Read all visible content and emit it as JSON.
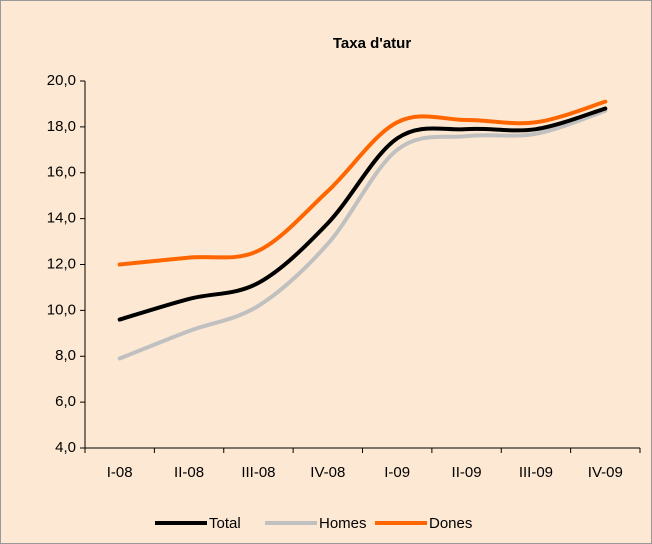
{
  "chart_data": {
    "type": "line",
    "title": "Taxa d'atur",
    "categories": [
      "I-08",
      "II-08",
      "III-08",
      "IV-08",
      "I-09",
      "II-09",
      "III-09",
      "IV-09"
    ],
    "series": [
      {
        "name": "Total",
        "color": "#000000",
        "values": [
          9.6,
          10.5,
          11.2,
          13.8,
          17.5,
          17.9,
          17.9,
          18.8
        ]
      },
      {
        "name": "Homes",
        "color": "#c0c0c0",
        "values": [
          7.9,
          9.1,
          10.2,
          12.9,
          17.0,
          17.6,
          17.7,
          18.7
        ]
      },
      {
        "name": "Dones",
        "color": "#ff6600",
        "values": [
          12.0,
          12.3,
          12.6,
          15.2,
          18.2,
          18.3,
          18.2,
          19.1
        ]
      }
    ],
    "ylim": [
      4,
      20
    ],
    "yticks": [
      {
        "value": 4,
        "label": "4,0"
      },
      {
        "value": 6,
        "label": "6,0"
      },
      {
        "value": 8,
        "label": "8,0"
      },
      {
        "value": 10,
        "label": "10,0"
      },
      {
        "value": 12,
        "label": "12,0"
      },
      {
        "value": 14,
        "label": "14,0"
      },
      {
        "value": 16,
        "label": "16,0"
      },
      {
        "value": 18,
        "label": "18,0"
      },
      {
        "value": 20,
        "label": "20,0"
      }
    ],
    "legend": "bottom"
  }
}
